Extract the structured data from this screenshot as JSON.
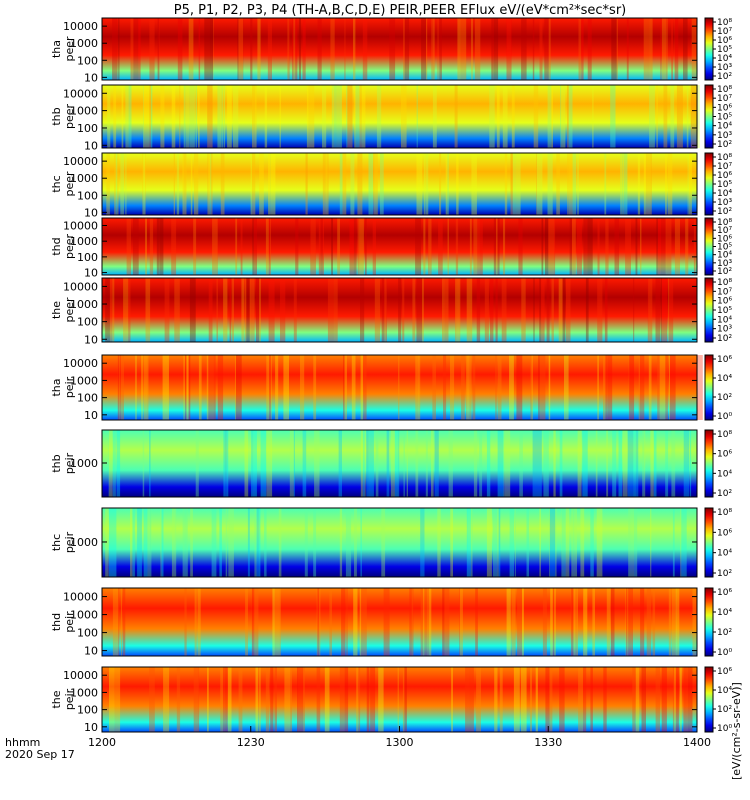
{
  "chart_data": {
    "type": "heatmap",
    "title": "P5, P1, P2, P3, P4 (TH-A,B,C,D,E) PEIR,PEER EFlux eV/(eV*cm²*sec*sr)",
    "x_ticks": [
      "1200",
      "1230",
      "1300",
      "1330",
      "1400"
    ],
    "xlim": [
      "12:00",
      "14:00"
    ],
    "time_label": "hhmm",
    "date_label": "2020 Sep 17",
    "y_scale": "log",
    "colorscale": "rainbow (blue-green-yellow-red)",
    "colorbar_ticks": [
      "10²",
      "10⁴",
      "10⁶",
      "10⁸"
    ],
    "colorbar_label": "[eV/(cm²-s-sr-eV)]",
    "panels": [
      {
        "name": "tha peer",
        "probe": "tha",
        "species": "peer",
        "yticks": [
          "10",
          "100",
          "1000",
          "10000"
        ],
        "ylim": [
          7,
          30000
        ],
        "colorbar_ticks": [
          "10²",
          "10³",
          "10⁴",
          "10⁵",
          "10⁶",
          "10⁷",
          "10⁸"
        ],
        "background_level": 0.85
      },
      {
        "name": "thb peer",
        "probe": "thb",
        "species": "peer",
        "yticks": [
          "10",
          "100",
          "1000",
          "10000"
        ],
        "ylim": [
          7,
          30000
        ],
        "colorbar_ticks": [
          "10²",
          "10³",
          "10⁴",
          "10⁵",
          "10⁶",
          "10⁷",
          "10⁸"
        ],
        "background_level": 0.6
      },
      {
        "name": "thc peer",
        "probe": "thc",
        "species": "peer",
        "yticks": [
          "10",
          "100",
          "1000",
          "10000"
        ],
        "ylim": [
          7,
          30000
        ],
        "colorbar_ticks": [
          "10²",
          "10³",
          "10⁴",
          "10⁵",
          "10⁶",
          "10⁷",
          "10⁸"
        ],
        "background_level": 0.6
      },
      {
        "name": "thd peer",
        "probe": "thd",
        "species": "peer",
        "yticks": [
          "10",
          "100",
          "1000",
          "10000"
        ],
        "ylim": [
          7,
          30000
        ],
        "colorbar_ticks": [
          "10²",
          "10³",
          "10⁴",
          "10⁵",
          "10⁶",
          "10⁷",
          "10⁸"
        ],
        "background_level": 0.85
      },
      {
        "name": "the peer",
        "probe": "the",
        "species": "peer",
        "yticks": [
          "10",
          "100",
          "1000",
          "10000"
        ],
        "ylim": [
          7,
          30000
        ],
        "colorbar_ticks": [
          "10²",
          "10³",
          "10⁴",
          "10⁵",
          "10⁶",
          "10⁷",
          "10⁸"
        ],
        "background_level": 0.85
      },
      {
        "name": "tha peir",
        "probe": "tha",
        "species": "peir",
        "yticks": [
          "10",
          "100",
          "1000",
          "10000"
        ],
        "ylim": [
          5,
          30000
        ],
        "colorbar_ticks": [
          "10⁰",
          "10²",
          "10⁴",
          "10⁶"
        ],
        "background_level": 0.75
      },
      {
        "name": "thb peir",
        "probe": "thb",
        "species": "peir",
        "yticks": [
          "1000"
        ],
        "ylim": [
          30,
          30000
        ],
        "colorbar_ticks": [
          "10²",
          "10⁴",
          "10⁶",
          "10⁸"
        ],
        "background_level": 0.45
      },
      {
        "name": "thc peir",
        "probe": "thc",
        "species": "peir",
        "yticks": [
          "1000"
        ],
        "ylim": [
          30,
          30000
        ],
        "colorbar_ticks": [
          "10²",
          "10⁴",
          "10⁶",
          "10⁸"
        ],
        "background_level": 0.45
      },
      {
        "name": "thd peir",
        "probe": "thd",
        "species": "peir",
        "yticks": [
          "10",
          "100",
          "1000",
          "10000"
        ],
        "ylim": [
          5,
          30000
        ],
        "colorbar_ticks": [
          "10⁰",
          "10²",
          "10⁴",
          "10⁶"
        ],
        "background_level": 0.75
      },
      {
        "name": "the peir",
        "probe": "the",
        "species": "peir",
        "yticks": [
          "10",
          "100",
          "1000",
          "10000"
        ],
        "ylim": [
          5,
          30000
        ],
        "colorbar_ticks": [
          "10⁰",
          "10²",
          "10⁴",
          "10⁶"
        ],
        "background_level": 0.75
      }
    ]
  }
}
